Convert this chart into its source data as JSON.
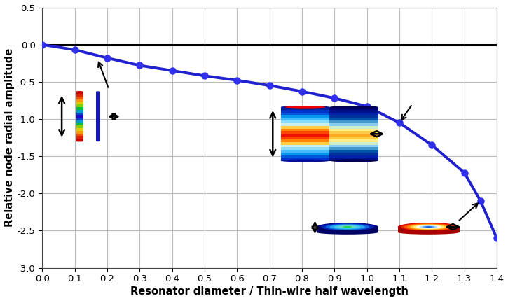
{
  "x": [
    0.0,
    0.1,
    0.2,
    0.3,
    0.4,
    0.5,
    0.6,
    0.7,
    0.8,
    0.9,
    1.0,
    1.1,
    1.2,
    1.3,
    1.35,
    1.4
  ],
  "y": [
    0.0,
    -0.07,
    -0.18,
    -0.28,
    -0.35,
    -0.42,
    -0.48,
    -0.55,
    -0.63,
    -0.72,
    -0.83,
    -1.05,
    -1.35,
    -1.72,
    -2.1,
    -2.6
  ],
  "line_color": "#2020CC",
  "marker_color": "#3030EE",
  "hline_color": "#000000",
  "xlabel": "Resonator diameter / Thin-wire half wavelength",
  "ylabel": "Relative node radial amplitude",
  "xlim": [
    0.0,
    1.4
  ],
  "ylim": [
    -3.0,
    0.5
  ],
  "xticks": [
    0.0,
    0.1,
    0.2,
    0.3,
    0.4,
    0.5,
    0.6,
    0.7,
    0.8,
    0.9,
    1.0,
    1.1,
    1.2,
    1.3,
    1.4
  ],
  "yticks": [
    0.5,
    0.0,
    -0.5,
    -1.0,
    -1.5,
    -2.0,
    -2.5,
    -3.0
  ],
  "grid_color": "#bbbbbb",
  "background_color": "#ffffff",
  "linewidth": 2.8,
  "markersize": 6.5
}
